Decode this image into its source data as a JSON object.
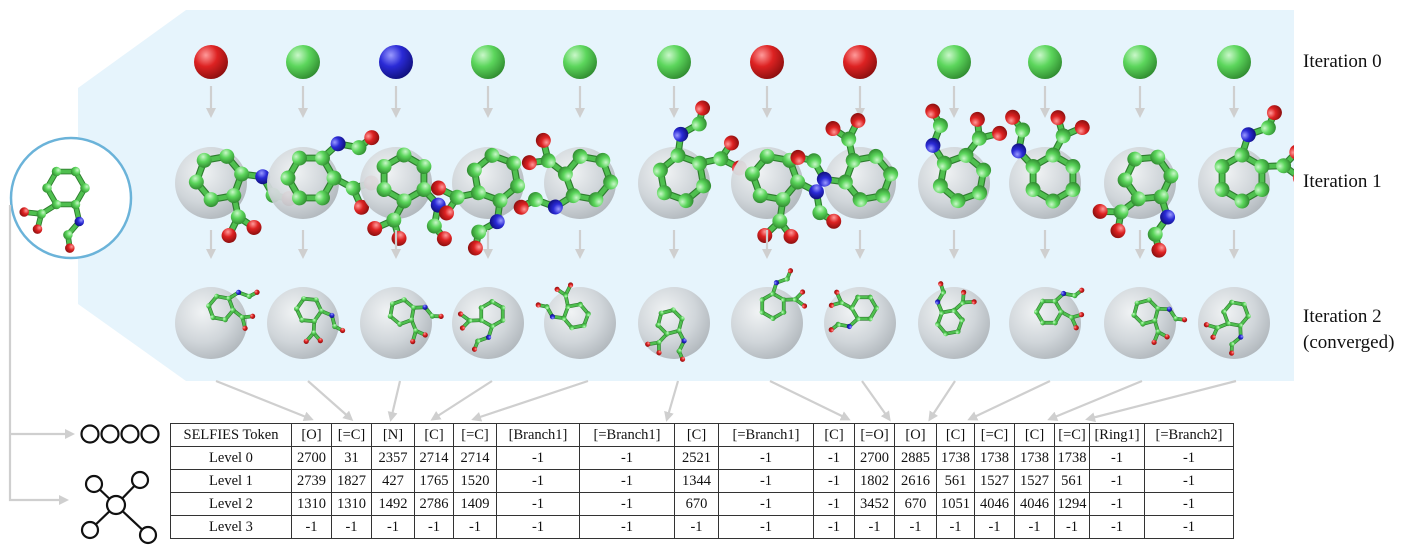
{
  "iteration_labels": [
    "Iteration 0",
    "Iteration 1",
    "Iteration 2",
    "(converged)"
  ],
  "atoms": [
    {
      "element": "O",
      "color": "#dd2222"
    },
    {
      "element": "C",
      "color": "#5cd65c"
    },
    {
      "element": "N",
      "color": "#2a2ad6"
    },
    {
      "element": "C",
      "color": "#5cd65c"
    },
    {
      "element": "C",
      "color": "#5cd65c"
    },
    {
      "element": "C",
      "color": "#5cd65c"
    },
    {
      "element": "O",
      "color": "#dd2222"
    },
    {
      "element": "O",
      "color": "#dd2222"
    },
    {
      "element": "C",
      "color": "#5cd65c"
    },
    {
      "element": "C",
      "color": "#5cd65c"
    },
    {
      "element": "C",
      "color": "#5cd65c"
    },
    {
      "element": "C",
      "color": "#5cd65c"
    }
  ],
  "colors": {
    "panel": "#e6f4fc",
    "circle_border": "#6bb3d9",
    "carbon": "#5cd65c",
    "oxygen": "#dd2222",
    "nitrogen": "#2a2ad6",
    "arrow": "#cfcfcf",
    "sphere": "#c9ced2"
  },
  "icons": [
    "molecule-icon",
    "token-sequence-icon",
    "graph-icon"
  ],
  "table": {
    "header_label": "SELFIES Token",
    "tokens": [
      "[O]",
      "[=C]",
      "[N]",
      "[C]",
      "[=C]",
      "[Branch1]",
      "[=Branch1]",
      "[C]",
      "[=Branch1]",
      "[C]",
      "[=O]",
      "[O]",
      "[C]",
      "[=C]",
      "[C]",
      "[=C]",
      "[Ring1]",
      "[=Branch2]"
    ],
    "rows": [
      {
        "label": "Level 0",
        "values": [
          "2700",
          "31",
          "2357",
          "2714",
          "2714",
          "-1",
          "-1",
          "2521",
          "-1",
          "-1",
          "2700",
          "2885",
          "1738",
          "1738",
          "1738",
          "1738",
          "-1",
          "-1"
        ]
      },
      {
        "label": "Level 1",
        "values": [
          "2739",
          "1827",
          "427",
          "1765",
          "1520",
          "-1",
          "-1",
          "1344",
          "-1",
          "-1",
          "1802",
          "2616",
          "561",
          "1527",
          "1527",
          "561",
          "-1",
          "-1"
        ]
      },
      {
        "label": "Level 2",
        "values": [
          "1310",
          "1310",
          "1492",
          "2786",
          "1409",
          "-1",
          "-1",
          "670",
          "-1",
          "-1",
          "3452",
          "670",
          "1051",
          "4046",
          "4046",
          "1294",
          "-1",
          "-1"
        ]
      },
      {
        "label": "Level 3",
        "values": [
          "-1",
          "-1",
          "-1",
          "-1",
          "-1",
          "-1",
          "-1",
          "-1",
          "-1",
          "-1",
          "-1",
          "-1",
          "-1",
          "-1",
          "-1",
          "-1",
          "-1",
          "-1"
        ]
      }
    ]
  }
}
